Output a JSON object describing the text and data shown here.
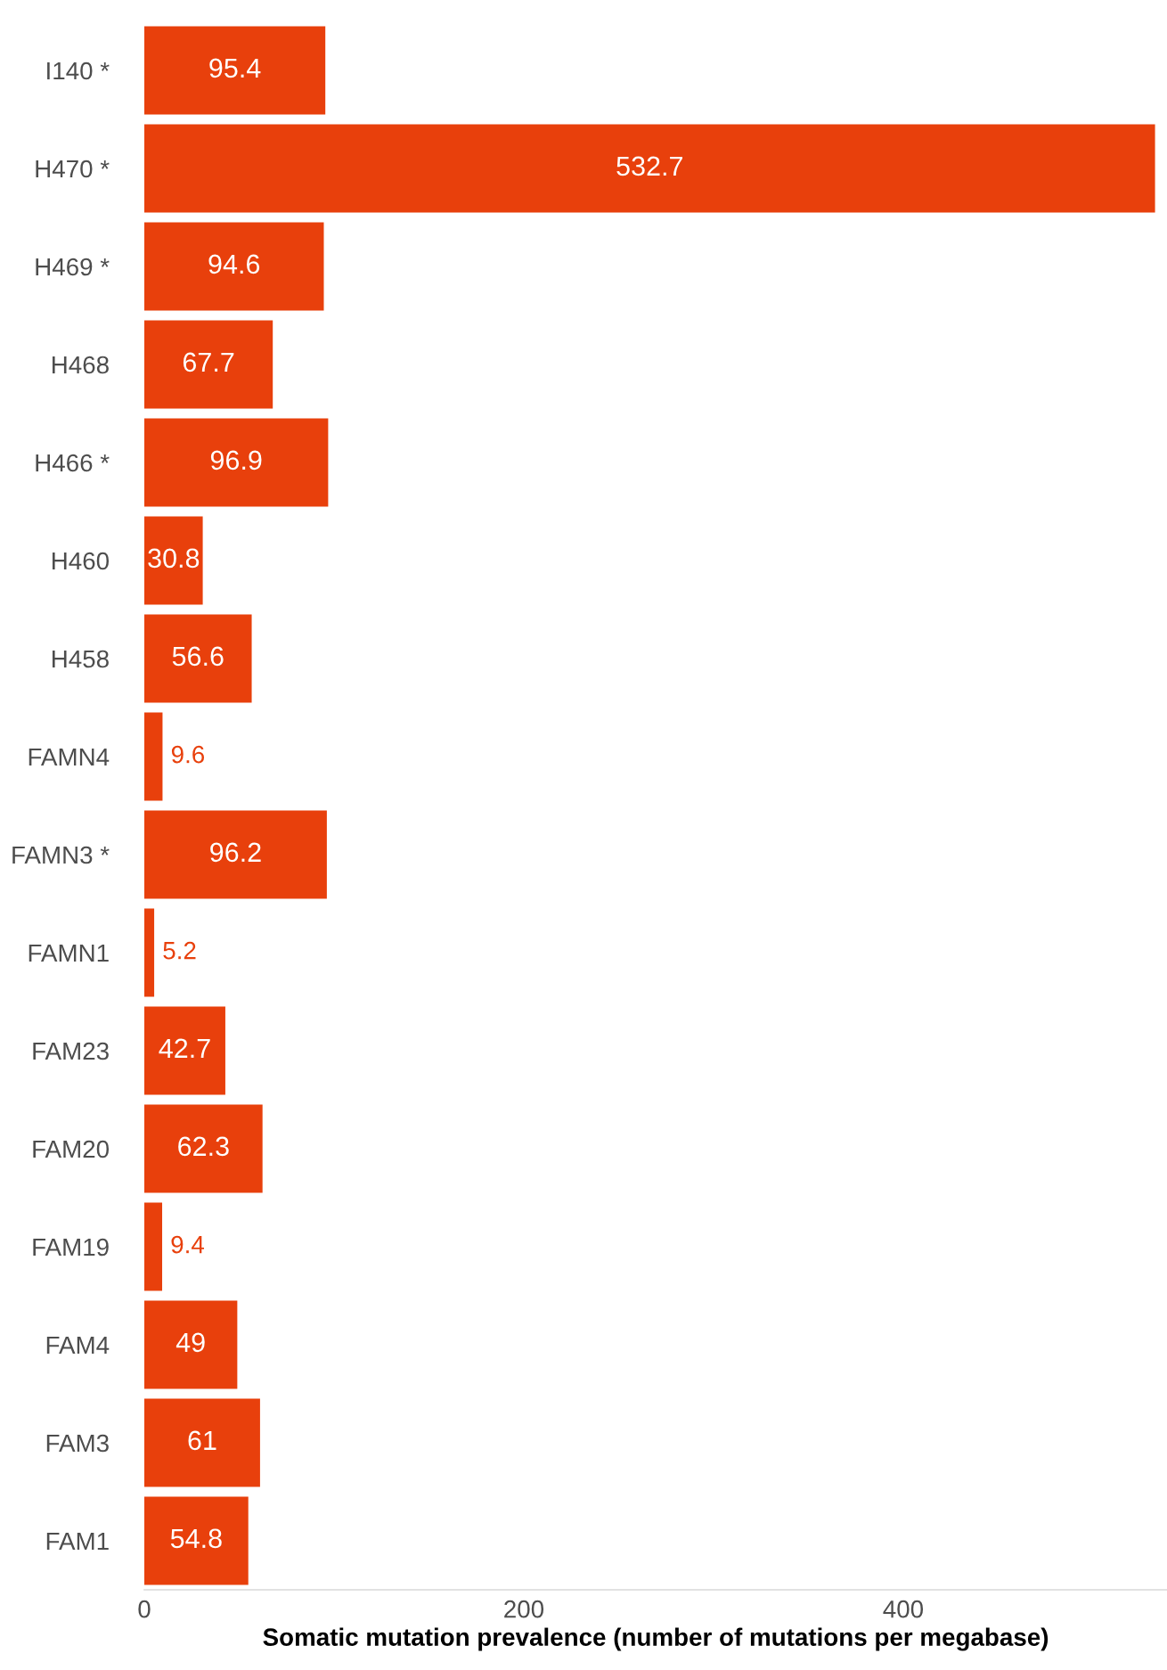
{
  "chart_data": {
    "type": "bar",
    "orientation": "horizontal",
    "xlabel": "Somatic mutation prevalence (number of mutations per megabase)",
    "categories": [
      "I140 *",
      "H470 *",
      "H469 *",
      "H468",
      "H466 *",
      "H460",
      "H458",
      "FAMN4",
      "FAMN3 *",
      "FAMN1",
      "FAM23",
      "FAM20",
      "FAM19",
      "FAM4",
      "FAM3",
      "FAM1"
    ],
    "values": [
      95.4,
      532.7,
      94.6,
      67.7,
      96.9,
      30.8,
      56.6,
      9.6,
      96.2,
      5.2,
      42.7,
      62.3,
      9.4,
      49,
      61,
      54.8
    ],
    "color": "#e8400c",
    "xlim": [
      0,
      539
    ],
    "xticks": [
      0,
      200,
      400
    ],
    "data_labels": true,
    "grid": false,
    "legend": false
  }
}
